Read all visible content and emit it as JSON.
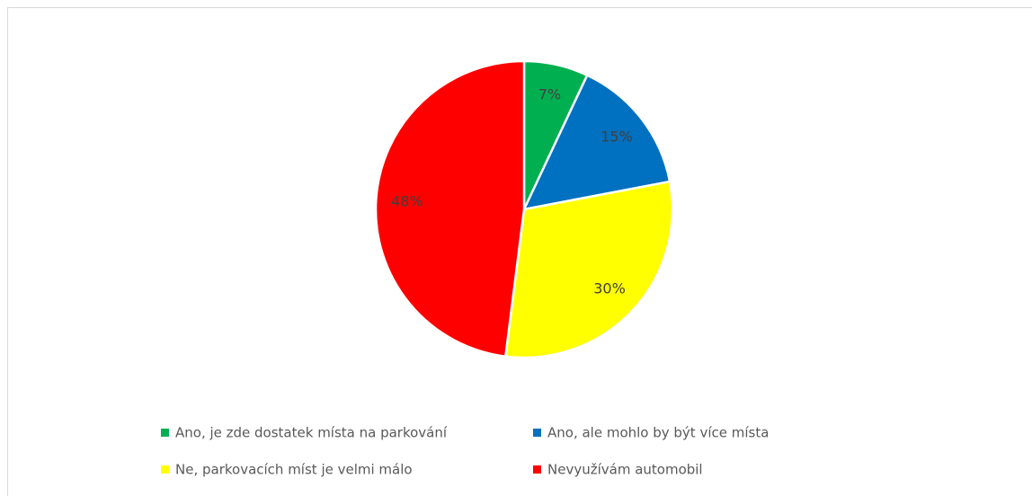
{
  "chart_data": {
    "type": "pie",
    "categories": [
      "Ano, je zde dostatek místa na parkování",
      "Ano, ale mohlo by být více místa",
      "Ne, parkovacích míst je velmi málo",
      "Nevyužívám automobil"
    ],
    "values": [
      7,
      15,
      30,
      48
    ],
    "value_labels": [
      "7%",
      "15%",
      "30%",
      "48%"
    ],
    "colors": [
      "#00b050",
      "#0070c0",
      "#ffff00",
      "#ff0000"
    ],
    "legend": "bottom"
  }
}
